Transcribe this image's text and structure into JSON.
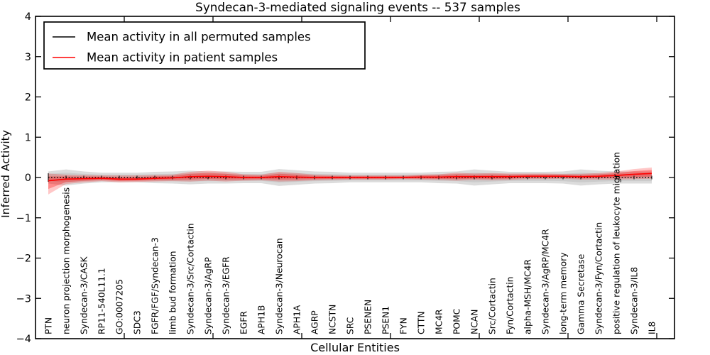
{
  "title": "Syndecan-3-mediated signaling events -- 537 samples",
  "legend": {
    "items": [
      {
        "label": "Mean activity in all permuted samples",
        "color": "#000000"
      },
      {
        "label": "Mean activity in patient samples",
        "color": "#ff0000"
      }
    ]
  },
  "chart_data": {
    "type": "line",
    "title": "Syndecan-3-mediated signaling events -- 537 samples",
    "xlabel": "Cellular Entities",
    "ylabel": "Inferred Activity",
    "ylim": [
      -4,
      4
    ],
    "xlim": [
      0,
      36
    ],
    "x_offset": 0.72,
    "grid": false,
    "legend_position": "upper left",
    "ytick_values": [
      -4,
      -3,
      -2,
      -1,
      0,
      1,
      2,
      3,
      4
    ],
    "ytick_labels": [
      "−4",
      "−3",
      "−2",
      "−1",
      "0",
      "1",
      "2",
      "3",
      "4"
    ],
    "xtick_values": [
      5,
      10,
      15,
      20,
      25,
      30,
      35
    ],
    "categories": [
      "PTN",
      "neuron projection morphogenesis",
      "Syndecan-3/CASK",
      "RP11-540L11.1",
      "GO:0007205",
      "SDC3",
      "FGFR/FGF/Syndecan-3",
      "limb bud formation",
      "Syndecan-3/Src/Cortactin",
      "Syndecan-3/AgRP",
      "Syndecan-3/EGFR",
      "EGFR",
      "APH1B",
      "Syndecan-3/Neurocan",
      "APH1A",
      "AGRP",
      "NCSTN",
      "SRC",
      "PSENEN",
      "PSEN1",
      "FYN",
      "CTTN",
      "MC4R",
      "POMC",
      "NCAN",
      "Src/Cortactin",
      "Fyn/Cortactin",
      "alpha-MSH/MC4R",
      "Syndecan-3/AgRP/MC4R",
      "long-term memory",
      "Gamma Secretase",
      "Syndecan-3/Fyn/Cortactin",
      "positive regulation of leukocyte migration",
      "Syndecan-3/IL8",
      "IL8"
    ],
    "series": [
      {
        "name": "Mean activity in all permuted samples",
        "color": "#000000",
        "style": "dotted",
        "values": [
          0,
          0,
          0,
          0,
          0,
          0,
          0,
          0,
          0,
          0,
          0,
          0,
          0,
          0,
          0,
          0,
          0,
          0,
          0,
          0,
          0,
          0,
          0,
          0,
          0,
          0,
          0,
          0,
          0,
          0,
          0,
          0,
          0,
          0,
          0
        ]
      },
      {
        "name": "Mean activity in patient samples",
        "color": "#ff0000",
        "style": "solid",
        "values": [
          -0.08,
          -0.04,
          -0.03,
          -0.02,
          -0.04,
          -0.04,
          -0.02,
          -0.01,
          0.02,
          0.03,
          0.02,
          0.0,
          0.0,
          0.02,
          0.01,
          0.0,
          0.0,
          0.0,
          0.0,
          0.0,
          0.0,
          0.01,
          0.01,
          0.02,
          0.02,
          0.02,
          0.02,
          0.03,
          0.03,
          0.03,
          0.02,
          0.03,
          0.05,
          0.08,
          0.1
        ]
      }
    ],
    "bands": {
      "permuted": {
        "color": "#c0c0c0",
        "upper": [
          0.15,
          0.2,
          0.15,
          0.12,
          0.12,
          0.12,
          0.14,
          0.15,
          0.17,
          0.15,
          0.15,
          0.14,
          0.14,
          0.21,
          0.18,
          0.15,
          0.14,
          0.12,
          0.12,
          0.12,
          0.12,
          0.12,
          0.14,
          0.15,
          0.2,
          0.17,
          0.14,
          0.14,
          0.14,
          0.15,
          0.2,
          0.17,
          0.15,
          0.15,
          0.15
        ],
        "lower": [
          -0.15,
          -0.2,
          -0.15,
          -0.12,
          -0.12,
          -0.12,
          -0.14,
          -0.15,
          -0.17,
          -0.15,
          -0.15,
          -0.14,
          -0.14,
          -0.21,
          -0.18,
          -0.15,
          -0.14,
          -0.12,
          -0.12,
          -0.12,
          -0.12,
          -0.12,
          -0.14,
          -0.15,
          -0.2,
          -0.17,
          -0.14,
          -0.14,
          -0.14,
          -0.15,
          -0.2,
          -0.17,
          -0.15,
          -0.15,
          -0.15
        ]
      },
      "patient": {
        "color": "#ff0000",
        "upper": [
          0.1,
          0.07,
          0.06,
          0.05,
          0.05,
          0.05,
          0.06,
          0.07,
          0.14,
          0.17,
          0.14,
          0.08,
          0.07,
          0.14,
          0.11,
          0.07,
          0.06,
          0.05,
          0.05,
          0.05,
          0.05,
          0.07,
          0.08,
          0.12,
          0.1,
          0.11,
          0.1,
          0.1,
          0.1,
          0.09,
          0.09,
          0.11,
          0.15,
          0.21,
          0.25
        ],
        "lower": [
          -0.42,
          -0.16,
          -0.12,
          -0.09,
          -0.12,
          -0.11,
          -0.1,
          -0.09,
          -0.1,
          -0.08,
          -0.1,
          -0.08,
          -0.07,
          -0.1,
          -0.09,
          -0.07,
          -0.06,
          -0.05,
          -0.05,
          -0.05,
          -0.04,
          -0.05,
          -0.06,
          -0.08,
          -0.06,
          -0.07,
          -0.06,
          -0.04,
          -0.04,
          -0.03,
          -0.05,
          -0.05,
          -0.05,
          -0.04,
          -0.03
        ]
      }
    }
  }
}
